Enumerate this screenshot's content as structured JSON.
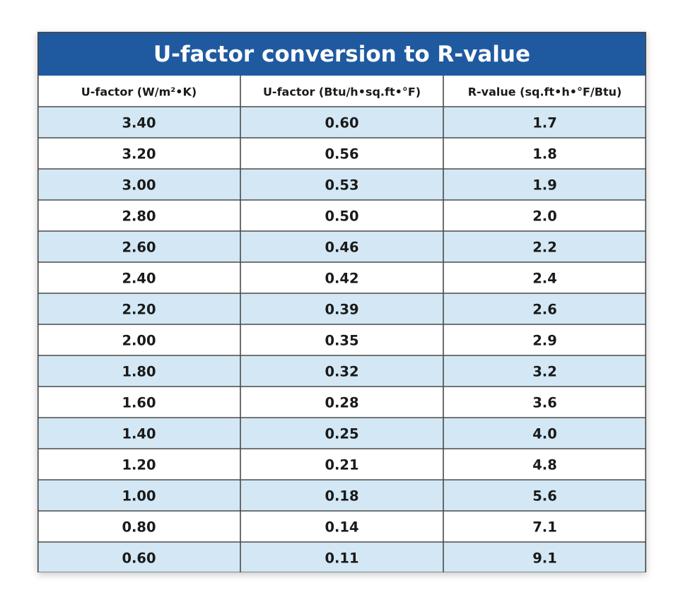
{
  "chart_data": {
    "type": "table",
    "title": "U-factor conversion to R-value",
    "columns": [
      "U-factor (W/m²•K)",
      "U-factor (Btu/h•sq.ft•°F)",
      "R-value (sq.ft•h•°F/Btu)"
    ],
    "rows": [
      [
        "3.40",
        "0.60",
        "1.7"
      ],
      [
        "3.20",
        "0.56",
        "1.8"
      ],
      [
        "3.00",
        "0.53",
        "1.9"
      ],
      [
        "2.80",
        "0.50",
        "2.0"
      ],
      [
        "2.60",
        "0.46",
        "2.2"
      ],
      [
        "2.40",
        "0.42",
        "2.4"
      ],
      [
        "2.20",
        "0.39",
        "2.6"
      ],
      [
        "2.00",
        "0.35",
        "2.9"
      ],
      [
        "1.80",
        "0.32",
        "3.2"
      ],
      [
        "1.60",
        "0.28",
        "3.6"
      ],
      [
        "1.40",
        "0.25",
        "4.0"
      ],
      [
        "1.20",
        "0.21",
        "4.8"
      ],
      [
        "1.00",
        "0.18",
        "5.6"
      ],
      [
        "0.80",
        "0.14",
        "7.1"
      ],
      [
        "0.60",
        "0.11",
        "9.1"
      ]
    ]
  },
  "colors": {
    "title_bg": "#1f5aa1",
    "title_text": "#ffffff",
    "header_bg": "#ffffff",
    "stripe_bg": "#d3e8f4",
    "plain_bg": "#ffffff",
    "grid_line": "#4a4a4a",
    "text": "#1a1a1a"
  }
}
